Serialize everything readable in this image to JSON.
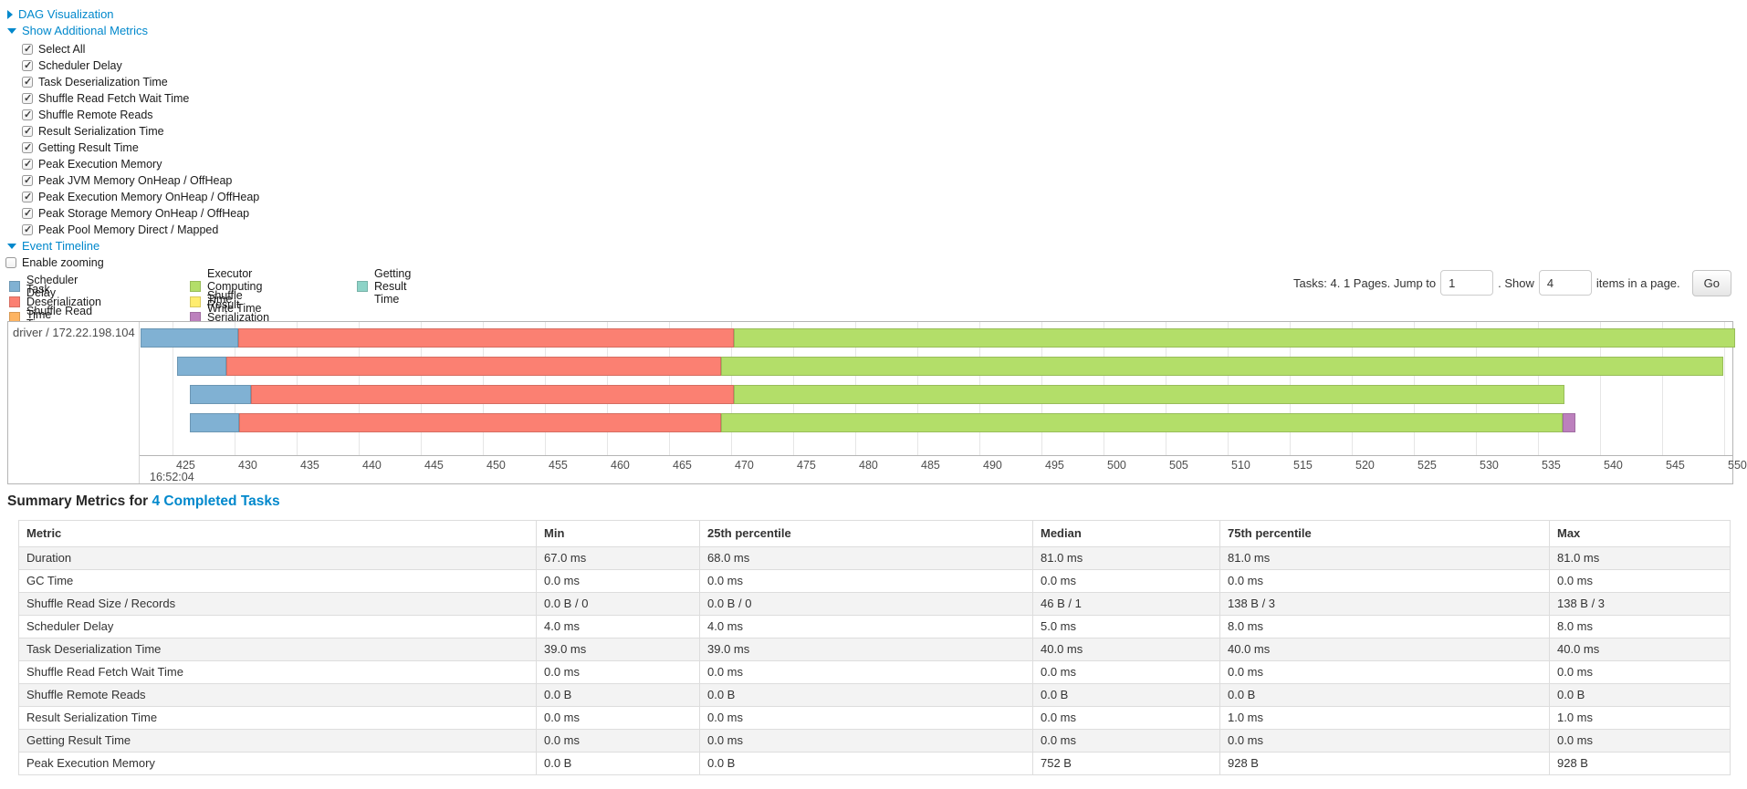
{
  "toggles": {
    "dag": {
      "label": "DAG Visualization",
      "state": "collapsed"
    },
    "additional_metrics": {
      "label": "Show Additional Metrics",
      "state": "expanded"
    },
    "event_timeline": {
      "label": "Event Timeline",
      "state": "expanded"
    }
  },
  "metric_checkboxes": [
    {
      "label": "Select All",
      "checked": true
    },
    {
      "label": "Scheduler Delay",
      "checked": true
    },
    {
      "label": "Task Deserialization Time",
      "checked": true
    },
    {
      "label": "Shuffle Read Fetch Wait Time",
      "checked": true
    },
    {
      "label": "Shuffle Remote Reads",
      "checked": true
    },
    {
      "label": "Result Serialization Time",
      "checked": true
    },
    {
      "label": "Getting Result Time",
      "checked": true
    },
    {
      "label": "Peak Execution Memory",
      "checked": true
    },
    {
      "label": "Peak JVM Memory OnHeap / OffHeap",
      "checked": true
    },
    {
      "label": "Peak Execution Memory OnHeap / OffHeap",
      "checked": true
    },
    {
      "label": "Peak Storage Memory OnHeap / OffHeap",
      "checked": true
    },
    {
      "label": "Peak Pool Memory Direct / Mapped",
      "checked": true
    }
  ],
  "enable_zooming": {
    "label": "Enable zooming",
    "checked": false
  },
  "pagination": {
    "tasks_text": "Tasks: 4. 1 Pages. Jump to",
    "jump_value": "1",
    "show_text": ". Show",
    "show_value": "4",
    "items_text": "items in a page.",
    "go_label": "Go"
  },
  "chart_data": {
    "type": "timeline",
    "title": "Event Timeline",
    "group_label": "driver / 172.22.198.104",
    "x_base_label": "16:52:04",
    "x_min": 422.35,
    "x_max": 550.66,
    "x_unit": "ms after 16:52:04",
    "ticks": [
      425,
      430,
      435,
      440,
      445,
      450,
      455,
      460,
      465,
      470,
      475,
      480,
      485,
      490,
      495,
      500,
      505,
      510,
      515,
      520,
      525,
      530,
      535,
      540,
      545,
      550
    ],
    "palette": {
      "scheduler_delay": {
        "fill": "#80B1D3",
        "stroke": "#6b96b3"
      },
      "task_deserialization": {
        "fill": "#FB8072",
        "stroke": "#d56d61"
      },
      "shuffle_read": {
        "fill": "#FDB462",
        "stroke": "#d79953"
      },
      "executor_computing": {
        "fill": "#B3DE69",
        "stroke": "#98bd59"
      },
      "shuffle_write": {
        "fill": "#FFED6F",
        "stroke": "#d9c95e"
      },
      "result_serialization": {
        "fill": "#BC80BD",
        "stroke": "#a06da1"
      },
      "getting_result": {
        "fill": "#8DD3C7",
        "stroke": "#78b3a9"
      }
    },
    "legend_columns": [
      [
        {
          "kind": "scheduler_delay",
          "label": "Scheduler Delay"
        },
        {
          "kind": "task_deserialization",
          "label": "Task Deserialization Time"
        },
        {
          "kind": "shuffle_read",
          "label": "Shuffle Read Time"
        }
      ],
      [
        {
          "kind": "executor_computing",
          "label": "Executor Computing Time"
        },
        {
          "kind": "shuffle_write",
          "label": "Shuffle Write Time"
        },
        {
          "kind": "result_serialization",
          "label": "Result Serialization Time"
        }
      ],
      [
        {
          "kind": "getting_result",
          "label": "Getting Result Time"
        }
      ]
    ],
    "tasks": [
      {
        "segments": [
          {
            "kind": "scheduler_delay",
            "start": 422.4,
            "end": 430.3
          },
          {
            "kind": "task_deserialization",
            "start": 430.3,
            "end": 470.2
          },
          {
            "kind": "executor_computing",
            "start": 470.2,
            "end": 550.9
          }
        ]
      },
      {
        "segments": [
          {
            "kind": "scheduler_delay",
            "start": 425.4,
            "end": 429.3
          },
          {
            "kind": "task_deserialization",
            "start": 429.3,
            "end": 469.2
          },
          {
            "kind": "executor_computing",
            "start": 469.2,
            "end": 549.9
          }
        ]
      },
      {
        "segments": [
          {
            "kind": "scheduler_delay",
            "start": 426.4,
            "end": 431.3
          },
          {
            "kind": "task_deserialization",
            "start": 431.3,
            "end": 470.2
          },
          {
            "kind": "executor_computing",
            "start": 470.2,
            "end": 537.1
          }
        ]
      },
      {
        "segments": [
          {
            "kind": "scheduler_delay",
            "start": 426.4,
            "end": 430.4
          },
          {
            "kind": "task_deserialization",
            "start": 430.4,
            "end": 469.2
          },
          {
            "kind": "executor_computing",
            "start": 469.2,
            "end": 537.0
          },
          {
            "kind": "result_serialization",
            "start": 537.0,
            "end": 538.0
          }
        ]
      }
    ]
  },
  "summary": {
    "title_prefix": "Summary Metrics for",
    "title_link": "4 Completed Tasks",
    "table": {
      "headers": [
        "Metric",
        "Min",
        "25th percentile",
        "Median",
        "75th percentile",
        "Max"
      ],
      "rows": [
        [
          "Duration",
          "67.0 ms",
          "68.0 ms",
          "81.0 ms",
          "81.0 ms",
          "81.0 ms"
        ],
        [
          "GC Time",
          "0.0 ms",
          "0.0 ms",
          "0.0 ms",
          "0.0 ms",
          "0.0 ms"
        ],
        [
          "Shuffle Read Size / Records",
          "0.0 B / 0",
          "0.0 B / 0",
          "46 B / 1",
          "138 B / 3",
          "138 B / 3"
        ],
        [
          "Scheduler Delay",
          "4.0 ms",
          "4.0 ms",
          "5.0 ms",
          "8.0 ms",
          "8.0 ms"
        ],
        [
          "Task Deserialization Time",
          "39.0 ms",
          "39.0 ms",
          "40.0 ms",
          "40.0 ms",
          "40.0 ms"
        ],
        [
          "Shuffle Read Fetch Wait Time",
          "0.0 ms",
          "0.0 ms",
          "0.0 ms",
          "0.0 ms",
          "0.0 ms"
        ],
        [
          "Shuffle Remote Reads",
          "0.0 B",
          "0.0 B",
          "0.0 B",
          "0.0 B",
          "0.0 B"
        ],
        [
          "Result Serialization Time",
          "0.0 ms",
          "0.0 ms",
          "0.0 ms",
          "1.0 ms",
          "1.0 ms"
        ],
        [
          "Getting Result Time",
          "0.0 ms",
          "0.0 ms",
          "0.0 ms",
          "0.0 ms",
          "0.0 ms"
        ],
        [
          "Peak Execution Memory",
          "0.0 B",
          "0.0 B",
          "752 B",
          "928 B",
          "928 B"
        ]
      ]
    }
  }
}
